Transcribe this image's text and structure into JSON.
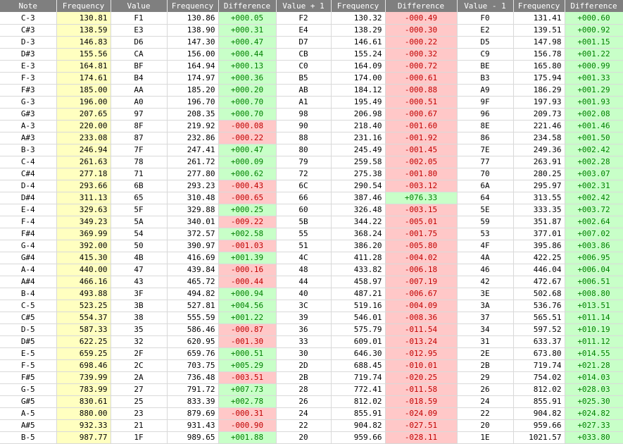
{
  "headers": [
    "Note",
    "Frequency",
    "Value",
    "Frequency",
    "Difference",
    "Value + 1",
    "Frequency",
    "Difference",
    "Value - 1",
    "Frequency",
    "Difference"
  ],
  "colors": {
    "header_bg": "#7f7f7f",
    "note_freq_bg": "#ffffc0",
    "positive_bg": "#c8ffc8",
    "positive_text": "#008000",
    "negative_bg": "#ffc8c8",
    "negative_text": "#c00000"
  },
  "rows": [
    [
      "C-3",
      "130.81",
      "F1",
      "130.86",
      "+000.05",
      "F2",
      "130.32",
      "-000.49",
      "F0",
      "131.41",
      "+000.60"
    ],
    [
      "C#3",
      "138.59",
      "E3",
      "138.90",
      "+000.31",
      "E4",
      "138.29",
      "-000.30",
      "E2",
      "139.51",
      "+000.92"
    ],
    [
      "D-3",
      "146.83",
      "D6",
      "147.30",
      "+000.47",
      "D7",
      "146.61",
      "-000.22",
      "D5",
      "147.98",
      "+001.15"
    ],
    [
      "D#3",
      "155.56",
      "CA",
      "156.00",
      "+000.44",
      "CB",
      "155.24",
      "-000.32",
      "C9",
      "156.78",
      "+001.22"
    ],
    [
      "E-3",
      "164.81",
      "BF",
      "164.94",
      "+000.13",
      "C0",
      "164.09",
      "-000.72",
      "BE",
      "165.80",
      "+000.99"
    ],
    [
      "F-3",
      "174.61",
      "B4",
      "174.97",
      "+000.36",
      "B5",
      "174.00",
      "-000.61",
      "B3",
      "175.94",
      "+001.33"
    ],
    [
      "F#3",
      "185.00",
      "AA",
      "185.20",
      "+000.20",
      "AB",
      "184.12",
      "-000.88",
      "A9",
      "186.29",
      "+001.29"
    ],
    [
      "G-3",
      "196.00",
      "A0",
      "196.70",
      "+000.70",
      "A1",
      "195.49",
      "-000.51",
      "9F",
      "197.93",
      "+001.93"
    ],
    [
      "G#3",
      "207.65",
      "97",
      "208.35",
      "+000.70",
      "98",
      "206.98",
      "-000.67",
      "96",
      "209.73",
      "+002.08"
    ],
    [
      "A-3",
      "220.00",
      "8F",
      "219.92",
      "-000.08",
      "90",
      "218.40",
      "-001.60",
      "8E",
      "221.46",
      "+001.46"
    ],
    [
      "A#3",
      "233.08",
      "87",
      "232.86",
      "-000.22",
      "88",
      "231.16",
      "-001.92",
      "86",
      "234.58",
      "+001.50"
    ],
    [
      "B-3",
      "246.94",
      "7F",
      "247.41",
      "+000.47",
      "80",
      "245.49",
      "-001.45",
      "7E",
      "249.36",
      "+002.42"
    ],
    [
      "C-4",
      "261.63",
      "78",
      "261.72",
      "+000.09",
      "79",
      "259.58",
      "-002.05",
      "77",
      "263.91",
      "+002.28"
    ],
    [
      "C#4",
      "277.18",
      "71",
      "277.80",
      "+000.62",
      "72",
      "275.38",
      "-001.80",
      "70",
      "280.25",
      "+003.07"
    ],
    [
      "D-4",
      "293.66",
      "6B",
      "293.23",
      "-000.43",
      "6C",
      "290.54",
      "-003.12",
      "6A",
      "295.97",
      "+002.31"
    ],
    [
      "D#4",
      "311.13",
      "65",
      "310.48",
      "-000.65",
      "66",
      "387.46",
      "+076.33",
      "64",
      "313.55",
      "+002.42"
    ],
    [
      "E-4",
      "329.63",
      "5F",
      "329.88",
      "+000.25",
      "60",
      "326.48",
      "-003.15",
      "5E",
      "333.35",
      "+003.72"
    ],
    [
      "F-4",
      "349.23",
      "5A",
      "340.01",
      "-009.22",
      "5B",
      "344.22",
      "-005.01",
      "59",
      "351.87",
      "+002.64"
    ],
    [
      "F#4",
      "369.99",
      "54",
      "372.57",
      "+002.58",
      "55",
      "368.24",
      "-001.75",
      "53",
      "377.01",
      "+007.02"
    ],
    [
      "G-4",
      "392.00",
      "50",
      "390.97",
      "-001.03",
      "51",
      "386.20",
      "-005.80",
      "4F",
      "395.86",
      "+003.86"
    ],
    [
      "G#4",
      "415.30",
      "4B",
      "416.69",
      "+001.39",
      "4C",
      "411.28",
      "-004.02",
      "4A",
      "422.25",
      "+006.95"
    ],
    [
      "A-4",
      "440.00",
      "47",
      "439.84",
      "-000.16",
      "48",
      "433.82",
      "-006.18",
      "46",
      "446.04",
      "+006.04"
    ],
    [
      "A#4",
      "466.16",
      "43",
      "465.72",
      "-000.44",
      "44",
      "458.97",
      "-007.19",
      "42",
      "472.67",
      "+006.51"
    ],
    [
      "B-4",
      "493.88",
      "3F",
      "494.82",
      "+000.94",
      "40",
      "487.21",
      "-006.67",
      "3E",
      "502.68",
      "+008.80"
    ],
    [
      "C-5",
      "523.25",
      "3B",
      "527.81",
      "+004.56",
      "3C",
      "519.16",
      "-004.09",
      "3A",
      "536.76",
      "+013.51"
    ],
    [
      "C#5",
      "554.37",
      "38",
      "555.59",
      "+001.22",
      "39",
      "546.01",
      "-008.36",
      "37",
      "565.51",
      "+011.14"
    ],
    [
      "D-5",
      "587.33",
      "35",
      "586.46",
      "-000.87",
      "36",
      "575.79",
      "-011.54",
      "34",
      "597.52",
      "+010.19"
    ],
    [
      "D#5",
      "622.25",
      "32",
      "620.95",
      "-001.30",
      "33",
      "609.01",
      "-013.24",
      "31",
      "633.37",
      "+011.12"
    ],
    [
      "E-5",
      "659.25",
      "2F",
      "659.76",
      "+000.51",
      "30",
      "646.30",
      "-012.95",
      "2E",
      "673.80",
      "+014.55"
    ],
    [
      "F-5",
      "698.46",
      "2C",
      "703.75",
      "+005.29",
      "2D",
      "688.45",
      "-010.01",
      "2B",
      "719.74",
      "+021.28"
    ],
    [
      "F#5",
      "739.99",
      "2A",
      "736.48",
      "-003.51",
      "2B",
      "719.74",
      "-020.25",
      "29",
      "754.02",
      "+014.03"
    ],
    [
      "G-5",
      "783.99",
      "27",
      "791.72",
      "+007.73",
      "28",
      "772.41",
      "-011.58",
      "26",
      "812.02",
      "+028.03"
    ],
    [
      "G#5",
      "830.61",
      "25",
      "833.39",
      "+002.78",
      "26",
      "812.02",
      "-018.59",
      "24",
      "855.91",
      "+025.30"
    ],
    [
      "A-5",
      "880.00",
      "23",
      "879.69",
      "-000.31",
      "24",
      "855.91",
      "-024.09",
      "22",
      "904.82",
      "+024.82"
    ],
    [
      "A#5",
      "932.33",
      "21",
      "931.43",
      "-000.90",
      "22",
      "904.82",
      "-027.51",
      "20",
      "959.66",
      "+027.33"
    ],
    [
      "B-5",
      "987.77",
      "1F",
      "989.65",
      "+001.88",
      "20",
      "959.66",
      "-028.11",
      "1E",
      "1021.57",
      "+033.80"
    ]
  ]
}
